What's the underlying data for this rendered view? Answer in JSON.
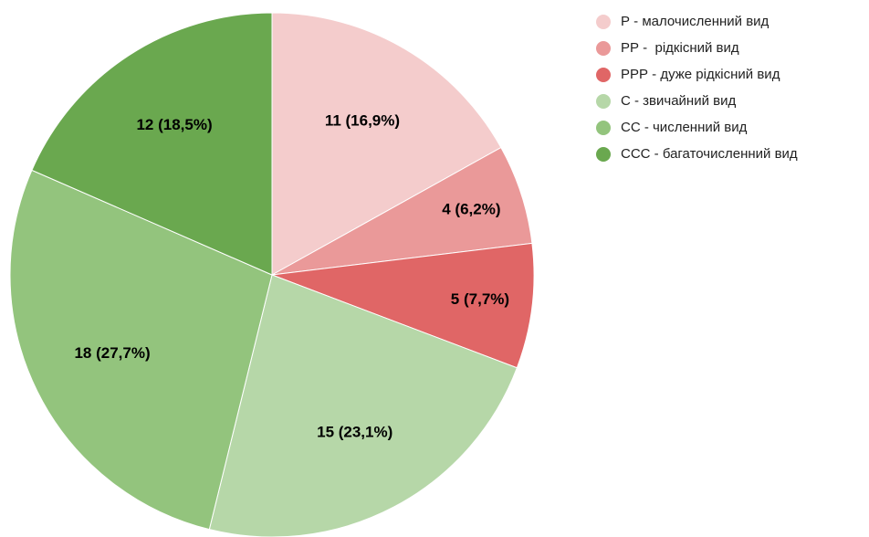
{
  "chart_data": {
    "type": "pie",
    "categories": [
      "Р - малочисленний вид",
      "РР -  рідкісний вид",
      "РРР - дуже рідкісний вид",
      "С - звичайний вид",
      "СС - численний вид",
      "ССС - багаточисленний вид"
    ],
    "values": [
      11,
      4,
      5,
      15,
      18,
      12
    ],
    "value_labels": [
      "11 (16,9%)",
      "4 (6,2%)",
      "5 (7,7%)",
      "15 (23,1%)",
      "18 (27,7%)",
      "12 (18,5%)"
    ],
    "colors": [
      "#f4cccc",
      "#ea9999",
      "#e06666",
      "#b6d7a8",
      "#93c47d",
      "#6aa84f"
    ],
    "legend": "top-right"
  }
}
